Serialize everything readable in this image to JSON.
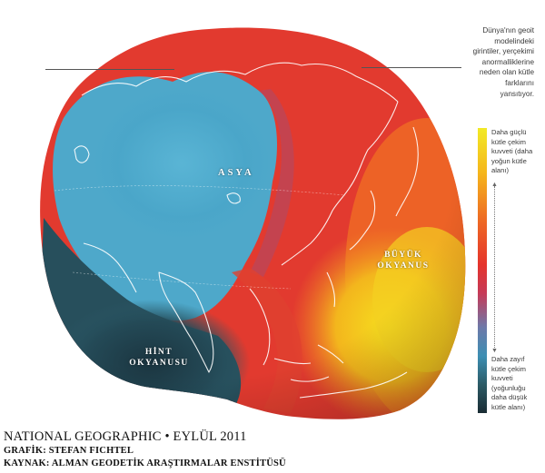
{
  "note": {
    "lines": [
      "Dünya'nın geoit",
      "modelindeki",
      "girintiler, yerçekimi",
      "anormalliklerine",
      "neden olan kütle",
      "farklarını",
      "yansıtıyor."
    ]
  },
  "legend": {
    "top_lines": [
      "Daha güçlü",
      "kütle çekim",
      "kuvveti (daha",
      "yoğun kütle",
      "alanı)"
    ],
    "bottom_lines": [
      "Daha zayıf",
      "kütle çekim",
      "kuvveti",
      "(yoğunluğu",
      "daha düşük",
      "kütle alanı)"
    ],
    "colors": {
      "high": "#f2ea26",
      "mid_high": "#ee6b24",
      "mid": "#e5342c",
      "mid_low": "#3d8fb3",
      "low": "#1a2c34"
    }
  },
  "map": {
    "labels": {
      "asya": "ASYA",
      "buyuk_line1": "BÜYÜK",
      "buyuk_line2": "OKYANUS",
      "hint_line1": "HİNT",
      "hint_line2": "OKYANUSU"
    },
    "colors": {
      "blue": "#4aa6c9",
      "dark": "#1f3a44",
      "red": "#e33a2e",
      "orange": "#f08a22",
      "yellow": "#f3dd22",
      "outline": "#ffffff"
    }
  },
  "credits": {
    "main": "NATIONAL GEOGRAPHIC • EYLÜL 2011",
    "graphic": "GRAFİK: STEFAN FICHTEL",
    "source": "KAYNAK: ALMAN GEODETİK ARAŞTIRMALAR ENSTİTÜSÜ"
  }
}
